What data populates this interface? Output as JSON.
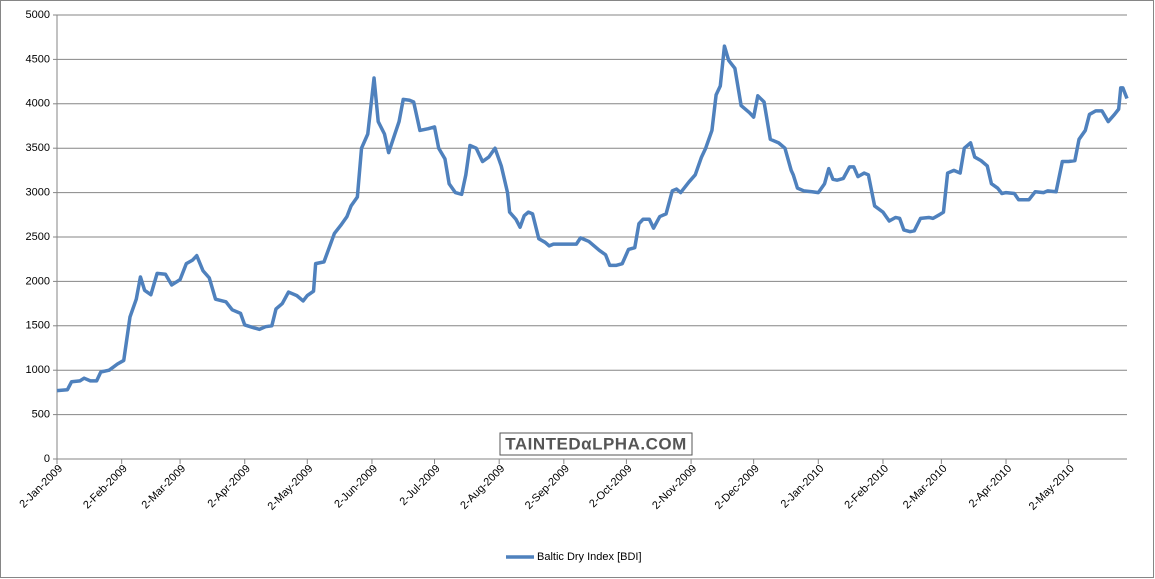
{
  "chart_data": {
    "type": "line",
    "watermark": "TAINTEDαLPHA.COM",
    "x": [
      "2009-01-02",
      "2009-01-07",
      "2009-01-09",
      "2009-01-13",
      "2009-01-15",
      "2009-01-18",
      "2009-01-21",
      "2009-01-23",
      "2009-01-27",
      "2009-01-31",
      "2009-02-03",
      "2009-02-06",
      "2009-02-09",
      "2009-02-11",
      "2009-02-13",
      "2009-02-16",
      "2009-02-19",
      "2009-02-23",
      "2009-02-26",
      "2009-03-02",
      "2009-03-05",
      "2009-03-08",
      "2009-03-10",
      "2009-03-13",
      "2009-03-16",
      "2009-03-19",
      "2009-03-24",
      "2009-03-27",
      "2009-03-31",
      "2009-04-02",
      "2009-04-06",
      "2009-04-09",
      "2009-04-12",
      "2009-04-15",
      "2009-04-17",
      "2009-04-20",
      "2009-04-23",
      "2009-04-27",
      "2009-04-30",
      "2009-05-02",
      "2009-05-05",
      "2009-05-06",
      "2009-05-10",
      "2009-05-15",
      "2009-05-18",
      "2009-05-21",
      "2009-05-23",
      "2009-05-26",
      "2009-05-28",
      "2009-05-31",
      "2009-06-03",
      "2009-06-05",
      "2009-06-08",
      "2009-06-10",
      "2009-06-13",
      "2009-06-15",
      "2009-06-17",
      "2009-06-20",
      "2009-06-22",
      "2009-06-25",
      "2009-06-29",
      "2009-07-02",
      "2009-07-04",
      "2009-07-07",
      "2009-07-09",
      "2009-07-12",
      "2009-07-15",
      "2009-07-17",
      "2009-07-19",
      "2009-07-22",
      "2009-07-25",
      "2009-07-28",
      "2009-07-31",
      "2009-08-03",
      "2009-08-06",
      "2009-08-07",
      "2009-08-10",
      "2009-08-12",
      "2009-08-14",
      "2009-08-16",
      "2009-08-18",
      "2009-08-21",
      "2009-08-24",
      "2009-08-26",
      "2009-08-28",
      "2009-09-01",
      "2009-09-04",
      "2009-09-08",
      "2009-09-10",
      "2009-09-14",
      "2009-09-19",
      "2009-09-22",
      "2009-09-24",
      "2009-09-27",
      "2009-09-30",
      "2009-10-03",
      "2009-10-06",
      "2009-10-08",
      "2009-10-10",
      "2009-10-13",
      "2009-10-15",
      "2009-10-18",
      "2009-10-21",
      "2009-10-24",
      "2009-10-26",
      "2009-10-28",
      "2009-11-01",
      "2009-11-04",
      "2009-11-07",
      "2009-11-09",
      "2009-11-12",
      "2009-11-14",
      "2009-11-16",
      "2009-11-18",
      "2009-11-20",
      "2009-11-23",
      "2009-11-26",
      "2009-11-30",
      "2009-12-02",
      "2009-12-04",
      "2009-12-07",
      "2009-12-10",
      "2009-12-14",
      "2009-12-17",
      "2009-12-20",
      "2009-12-21",
      "2009-12-23",
      "2009-12-26",
      "2009-12-30",
      "2010-01-02",
      "2010-01-05",
      "2010-01-07",
      "2010-01-09",
      "2010-01-11",
      "2010-01-14",
      "2010-01-17",
      "2010-01-19",
      "2010-01-21",
      "2010-01-24",
      "2010-01-26",
      "2010-01-29",
      "2010-02-02",
      "2010-02-05",
      "2010-02-08",
      "2010-02-10",
      "2010-02-12",
      "2010-02-15",
      "2010-02-17",
      "2010-02-20",
      "2010-02-24",
      "2010-02-26",
      "2010-03-01",
      "2010-03-03",
      "2010-03-05",
      "2010-03-08",
      "2010-03-11",
      "2010-03-13",
      "2010-03-16",
      "2010-03-18",
      "2010-03-21",
      "2010-03-24",
      "2010-03-26",
      "2010-03-29",
      "2010-03-31",
      "2010-04-02",
      "2010-04-06",
      "2010-04-08",
      "2010-04-13",
      "2010-04-16",
      "2010-04-20",
      "2010-04-22",
      "2010-04-26",
      "2010-04-29",
      "2010-05-02",
      "2010-05-05",
      "2010-05-07",
      "2010-05-10",
      "2010-05-12",
      "2010-05-15",
      "2010-05-18",
      "2010-05-21",
      "2010-05-24",
      "2010-05-26",
      "2010-05-27",
      "2010-05-28",
      "2010-05-30"
    ],
    "series": [
      {
        "name": "Baltic Dry Index [BDI]",
        "color": "#4f81bd",
        "values": [
          770,
          780,
          870,
          880,
          910,
          880,
          880,
          980,
          1000,
          1070,
          1110,
          1600,
          1800,
          2050,
          1900,
          1850,
          2090,
          2080,
          1960,
          2020,
          2200,
          2240,
          2290,
          2120,
          2040,
          1800,
          1770,
          1680,
          1640,
          1510,
          1480,
          1460,
          1490,
          1500,
          1690,
          1750,
          1880,
          1840,
          1780,
          1840,
          1890,
          2200,
          2220,
          2540,
          2630,
          2730,
          2850,
          2950,
          3500,
          3660,
          4290,
          3800,
          3660,
          3450,
          3660,
          3800,
          4050,
          4040,
          4020,
          3700,
          3720,
          3740,
          3500,
          3380,
          3100,
          3000,
          2980,
          3200,
          3530,
          3500,
          3350,
          3400,
          3500,
          3300,
          3000,
          2780,
          2700,
          2610,
          2740,
          2780,
          2760,
          2480,
          2440,
          2400,
          2420,
          2420,
          2420,
          2420,
          2490,
          2450,
          2350,
          2300,
          2180,
          2180,
          2200,
          2360,
          2380,
          2650,
          2700,
          2700,
          2600,
          2730,
          2760,
          3020,
          3040,
          3000,
          3120,
          3200,
          3400,
          3500,
          3700,
          4100,
          4200,
          4650,
          4490,
          4400,
          3980,
          3900,
          3850,
          4090,
          4020,
          3600,
          3560,
          3500,
          3250,
          3200,
          3050,
          3020,
          3010,
          3000,
          3100,
          3270,
          3150,
          3140,
          3160,
          3290,
          3290,
          3180,
          3220,
          3200,
          2850,
          2780,
          2680,
          2720,
          2710,
          2580,
          2560,
          2570,
          2710,
          2720,
          2710,
          2750,
          2780,
          3220,
          3250,
          3220,
          3500,
          3560,
          3400,
          3360,
          3300,
          3100,
          3050,
          2990,
          3000,
          2990,
          2920,
          2920,
          3010,
          3000,
          3020,
          3010,
          3350,
          3350,
          3360,
          3600,
          3700,
          3880,
          3920,
          3920,
          3800,
          3880,
          3940,
          4180,
          4180,
          4060
        ]
      }
    ],
    "xlim": [
      "2009-01-02",
      "2010-05-30"
    ],
    "xticks": [
      {
        "value": "2009-01-02",
        "label": "2-Jan-2009"
      },
      {
        "value": "2009-02-02",
        "label": "2-Feb-2009"
      },
      {
        "value": "2009-03-02",
        "label": "2-Mar-2009"
      },
      {
        "value": "2009-04-02",
        "label": "2-Apr-2009"
      },
      {
        "value": "2009-05-02",
        "label": "2-May-2009"
      },
      {
        "value": "2009-06-02",
        "label": "2-Jun-2009"
      },
      {
        "value": "2009-07-02",
        "label": "2-Jul-2009"
      },
      {
        "value": "2009-08-02",
        "label": "2-Aug-2009"
      },
      {
        "value": "2009-09-02",
        "label": "2-Sep-2009"
      },
      {
        "value": "2009-10-02",
        "label": "2-Oct-2009"
      },
      {
        "value": "2009-11-02",
        "label": "2-Nov-2009"
      },
      {
        "value": "2009-12-02",
        "label": "2-Dec-2009"
      },
      {
        "value": "2010-01-02",
        "label": "2-Jan-2010"
      },
      {
        "value": "2010-02-02",
        "label": "2-Feb-2010"
      },
      {
        "value": "2010-03-02",
        "label": "2-Mar-2010"
      },
      {
        "value": "2010-04-02",
        "label": "2-Apr-2010"
      },
      {
        "value": "2010-05-02",
        "label": "2-May-2010"
      }
    ],
    "ylim": [
      0,
      5000
    ],
    "yticks": [
      0,
      500,
      1000,
      1500,
      2000,
      2500,
      3000,
      3500,
      4000,
      4500,
      5000
    ],
    "grid": true,
    "legend": "bottom"
  }
}
